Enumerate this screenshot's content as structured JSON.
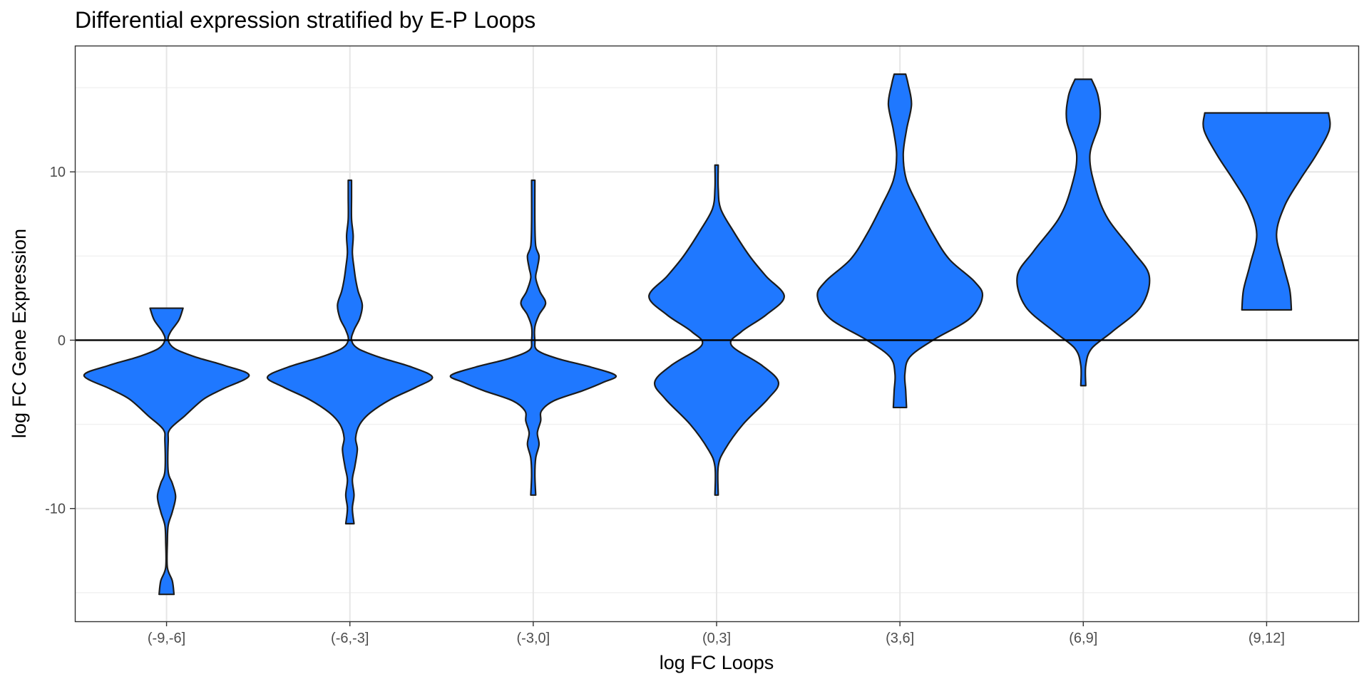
{
  "chart_data": {
    "type": "violin",
    "title": "Differential expression stratified by E-P Loops",
    "xlabel": "log FC Loops",
    "ylabel": "log FC Gene Expression",
    "categories": [
      "(-9,-6]",
      "(-6,-3]",
      "(-3,0]",
      "(0,3]",
      "(3,6]",
      "(6,9]",
      "(9,12]"
    ],
    "ylim": [
      -16.7,
      17.5
    ],
    "yticks": [
      -10,
      0,
      10
    ],
    "ytick_labels": [
      "-10",
      "0",
      "10"
    ],
    "hline": 0,
    "grid": true,
    "fill_color": "#1f78ff",
    "violins": [
      {
        "category": "(-9,-6]",
        "y_min": -15.1,
        "y_max": 1.9,
        "profile": [
          [
            -15.1,
            0.09
          ],
          [
            -14.3,
            0.07
          ],
          [
            -13.5,
            0.01
          ],
          [
            -12,
            0.01
          ],
          [
            -11,
            0.02
          ],
          [
            -10.2,
            0.07
          ],
          [
            -9.3,
            0.11
          ],
          [
            -8.5,
            0.07
          ],
          [
            -7.8,
            0.02
          ],
          [
            -6,
            0.02
          ],
          [
            -5.3,
            0.04
          ],
          [
            -4.5,
            0.22
          ],
          [
            -3.5,
            0.45
          ],
          [
            -2.9,
            0.68
          ],
          [
            -2.1,
            1.0
          ],
          [
            -1.5,
            0.7
          ],
          [
            -1.0,
            0.35
          ],
          [
            -0.5,
            0.1
          ],
          [
            0,
            0.02
          ],
          [
            0.5,
            0.05
          ],
          [
            1.2,
            0.15
          ],
          [
            1.9,
            0.2
          ]
        ]
      },
      {
        "category": "(-6,-3]",
        "y_min": -10.9,
        "y_max": 9.5,
        "profile": [
          [
            -10.9,
            0.05
          ],
          [
            -10,
            0.03
          ],
          [
            -9.2,
            0.05
          ],
          [
            -8.3,
            0.03
          ],
          [
            -7.5,
            0.06
          ],
          [
            -6.5,
            0.09
          ],
          [
            -5.8,
            0.07
          ],
          [
            -5,
            0.12
          ],
          [
            -4.3,
            0.25
          ],
          [
            -3.5,
            0.5
          ],
          [
            -2.8,
            0.8
          ],
          [
            -2.2,
            1.0
          ],
          [
            -1.6,
            0.75
          ],
          [
            -1.0,
            0.35
          ],
          [
            -0.5,
            0.1
          ],
          [
            0,
            0.02
          ],
          [
            0.6,
            0.05
          ],
          [
            1.3,
            0.12
          ],
          [
            2.1,
            0.15
          ],
          [
            2.9,
            0.1
          ],
          [
            3.6,
            0.07
          ],
          [
            4.3,
            0.05
          ],
          [
            5.2,
            0.03
          ],
          [
            6.2,
            0.04
          ],
          [
            7.2,
            0.02
          ],
          [
            8.5,
            0.02
          ],
          [
            9.5,
            0.02
          ]
        ]
      },
      {
        "category": "(-3,0]",
        "y_min": -9.2,
        "y_max": 9.5,
        "profile": [
          [
            -9.2,
            0.03
          ],
          [
            -8,
            0.02
          ],
          [
            -7,
            0.03
          ],
          [
            -6.2,
            0.07
          ],
          [
            -5.5,
            0.05
          ],
          [
            -4.8,
            0.09
          ],
          [
            -4.2,
            0.1
          ],
          [
            -3.6,
            0.25
          ],
          [
            -3.0,
            0.6
          ],
          [
            -2.5,
            0.85
          ],
          [
            -2.1,
            1.0
          ],
          [
            -1.6,
            0.7
          ],
          [
            -1.1,
            0.3
          ],
          [
            -0.6,
            0.05
          ],
          [
            0,
            0.02
          ],
          [
            0.8,
            0.02
          ],
          [
            1.5,
            0.07
          ],
          [
            2.2,
            0.15
          ],
          [
            2.9,
            0.08
          ],
          [
            3.7,
            0.03
          ],
          [
            4.3,
            0.05
          ],
          [
            5.0,
            0.07
          ],
          [
            5.6,
            0.03
          ],
          [
            7,
            0.02
          ],
          [
            9.5,
            0.02
          ]
        ]
      },
      {
        "category": "(0,3]",
        "y_min": -9.2,
        "y_max": 10.4,
        "profile": [
          [
            -9.2,
            0.02
          ],
          [
            -7.5,
            0.02
          ],
          [
            -6.5,
            0.1
          ],
          [
            -5,
            0.32
          ],
          [
            -3.5,
            0.62
          ],
          [
            -2.5,
            0.75
          ],
          [
            -1.5,
            0.55
          ],
          [
            -0.3,
            0.18
          ],
          [
            0.5,
            0.3
          ],
          [
            1.5,
            0.6
          ],
          [
            2.6,
            0.82
          ],
          [
            3.8,
            0.6
          ],
          [
            5,
            0.4
          ],
          [
            6.5,
            0.2
          ],
          [
            7.8,
            0.05
          ],
          [
            9,
            0.02
          ],
          [
            10.4,
            0.02
          ]
        ]
      },
      {
        "category": "(3,6]",
        "y_min": -4.0,
        "y_max": 15.8,
        "profile": [
          [
            -4.0,
            0.08
          ],
          [
            -3.0,
            0.07
          ],
          [
            -2.0,
            0.06
          ],
          [
            -1.0,
            0.12
          ],
          [
            0,
            0.4
          ],
          [
            1.3,
            0.85
          ],
          [
            2.6,
            1.0
          ],
          [
            3.5,
            0.9
          ],
          [
            4.8,
            0.6
          ],
          [
            6.3,
            0.4
          ],
          [
            8,
            0.22
          ],
          [
            9.5,
            0.08
          ],
          [
            11,
            0.04
          ],
          [
            12.5,
            0.08
          ],
          [
            14,
            0.14
          ],
          [
            15.2,
            0.1
          ],
          [
            15.8,
            0.07
          ]
        ]
      },
      {
        "category": "(6,9]",
        "y_min": -2.7,
        "y_max": 15.5,
        "profile": [
          [
            -2.7,
            0.03
          ],
          [
            -1.5,
            0.03
          ],
          [
            -0.5,
            0.1
          ],
          [
            0.5,
            0.35
          ],
          [
            2,
            0.7
          ],
          [
            3.8,
            0.8
          ],
          [
            5.3,
            0.6
          ],
          [
            7.2,
            0.3
          ],
          [
            9,
            0.15
          ],
          [
            11,
            0.08
          ],
          [
            13,
            0.2
          ],
          [
            14.5,
            0.18
          ],
          [
            15.5,
            0.1
          ]
        ]
      },
      {
        "category": "(9,12]",
        "y_min": 1.8,
        "y_max": 13.5,
        "profile": [
          [
            1.8,
            0.3
          ],
          [
            3,
            0.28
          ],
          [
            4.5,
            0.2
          ],
          [
            6.3,
            0.12
          ],
          [
            8,
            0.22
          ],
          [
            9.5,
            0.4
          ],
          [
            11,
            0.6
          ],
          [
            12.5,
            0.76
          ],
          [
            13.5,
            0.75
          ]
        ]
      }
    ]
  }
}
